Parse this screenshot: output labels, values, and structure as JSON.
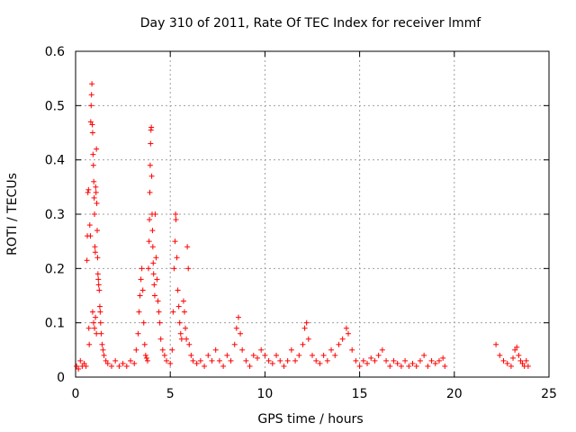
{
  "chart_data": {
    "type": "scatter",
    "title": "Day 310 of 2011, Rate Of TEC Index for receiver lmmf",
    "xlabel": "GPS time / hours",
    "ylabel": "ROTI / TECUs",
    "xlim": [
      0,
      25
    ],
    "ylim": [
      0,
      0.6
    ],
    "xticks": [
      "0",
      "5",
      "10",
      "15",
      "20",
      "25"
    ],
    "yticks": [
      "0",
      "0.1",
      "0.2",
      "0.3",
      "0.4",
      "0.5",
      "0.6"
    ],
    "grid": true,
    "marker": "plus",
    "color": "#ff0000",
    "series": [
      {
        "values": [
          [
            0.05,
            0.02
          ],
          [
            0.15,
            0.015
          ],
          [
            0.25,
            0.03
          ],
          [
            0.35,
            0.02
          ],
          [
            0.45,
            0.025
          ],
          [
            0.55,
            0.02
          ],
          [
            0.6,
            0.215
          ],
          [
            0.62,
            0.26
          ],
          [
            0.65,
            0.34
          ],
          [
            0.68,
            0.345
          ],
          [
            0.7,
            0.09
          ],
          [
            0.72,
            0.06
          ],
          [
            0.75,
            0.28
          ],
          [
            0.78,
            0.26
          ],
          [
            0.8,
            0.47
          ],
          [
            0.82,
            0.5
          ],
          [
            0.84,
            0.52
          ],
          [
            0.86,
            0.54
          ],
          [
            0.88,
            0.465
          ],
          [
            0.9,
            0.45
          ],
          [
            0.92,
            0.41
          ],
          [
            0.94,
            0.39
          ],
          [
            0.96,
            0.36
          ],
          [
            0.98,
            0.33
          ],
          [
            1.0,
            0.3
          ],
          [
            1.02,
            0.24
          ],
          [
            1.04,
            0.23
          ],
          [
            1.06,
            0.35
          ],
          [
            1.08,
            0.34
          ],
          [
            1.1,
            0.42
          ],
          [
            1.12,
            0.32
          ],
          [
            1.14,
            0.27
          ],
          [
            1.16,
            0.22
          ],
          [
            1.18,
            0.19
          ],
          [
            1.2,
            0.18
          ],
          [
            1.22,
            0.17
          ],
          [
            1.25,
            0.16
          ],
          [
            1.28,
            0.13
          ],
          [
            1.3,
            0.12
          ],
          [
            1.32,
            0.1
          ],
          [
            1.35,
            0.08
          ],
          [
            1.4,
            0.06
          ],
          [
            1.45,
            0.05
          ],
          [
            1.5,
            0.04
          ],
          [
            1.6,
            0.03
          ],
          [
            0.9,
            0.12
          ],
          [
            0.95,
            0.1
          ],
          [
            1.0,
            0.09
          ],
          [
            1.05,
            0.11
          ],
          [
            1.1,
            0.08
          ],
          [
            1.7,
            0.025
          ],
          [
            1.9,
            0.02
          ],
          [
            2.1,
            0.03
          ],
          [
            2.3,
            0.02
          ],
          [
            2.5,
            0.025
          ],
          [
            2.7,
            0.02
          ],
          [
            2.9,
            0.03
          ],
          [
            3.1,
            0.025
          ],
          [
            3.2,
            0.05
          ],
          [
            3.3,
            0.08
          ],
          [
            3.35,
            0.12
          ],
          [
            3.4,
            0.15
          ],
          [
            3.45,
            0.18
          ],
          [
            3.5,
            0.2
          ],
          [
            3.55,
            0.16
          ],
          [
            3.6,
            0.1
          ],
          [
            3.65,
            0.06
          ],
          [
            3.7,
            0.04
          ],
          [
            3.75,
            0.035
          ],
          [
            3.8,
            0.03
          ],
          [
            3.85,
            0.2
          ],
          [
            3.88,
            0.25
          ],
          [
            3.9,
            0.29
          ],
          [
            3.92,
            0.34
          ],
          [
            3.94,
            0.39
          ],
          [
            3.96,
            0.43
          ],
          [
            3.98,
            0.455
          ],
          [
            4.0,
            0.46
          ],
          [
            4.02,
            0.37
          ],
          [
            4.04,
            0.3
          ],
          [
            4.06,
            0.27
          ],
          [
            4.08,
            0.24
          ],
          [
            4.1,
            0.21
          ],
          [
            4.12,
            0.19
          ],
          [
            4.15,
            0.17
          ],
          [
            4.18,
            0.15
          ],
          [
            4.2,
            0.3
          ],
          [
            4.25,
            0.22
          ],
          [
            4.3,
            0.18
          ],
          [
            4.35,
            0.14
          ],
          [
            4.4,
            0.12
          ],
          [
            4.45,
            0.1
          ],
          [
            4.5,
            0.07
          ],
          [
            4.6,
            0.05
          ],
          [
            4.7,
            0.04
          ],
          [
            4.8,
            0.03
          ],
          [
            5.0,
            0.025
          ],
          [
            5.1,
            0.05
          ],
          [
            5.15,
            0.12
          ],
          [
            5.2,
            0.2
          ],
          [
            5.25,
            0.25
          ],
          [
            5.28,
            0.3
          ],
          [
            5.3,
            0.29
          ],
          [
            5.35,
            0.22
          ],
          [
            5.4,
            0.16
          ],
          [
            5.45,
            0.13
          ],
          [
            5.5,
            0.1
          ],
          [
            5.55,
            0.08
          ],
          [
            5.6,
            0.07
          ],
          [
            5.7,
            0.14
          ],
          [
            5.75,
            0.12
          ],
          [
            5.8,
            0.09
          ],
          [
            5.85,
            0.07
          ],
          [
            5.9,
            0.24
          ],
          [
            5.95,
            0.2
          ],
          [
            6.0,
            0.06
          ],
          [
            6.1,
            0.04
          ],
          [
            6.2,
            0.03
          ],
          [
            6.4,
            0.025
          ],
          [
            6.6,
            0.03
          ],
          [
            6.8,
            0.02
          ],
          [
            7.0,
            0.04
          ],
          [
            7.2,
            0.03
          ],
          [
            7.4,
            0.05
          ],
          [
            7.6,
            0.03
          ],
          [
            7.8,
            0.02
          ],
          [
            8.0,
            0.04
          ],
          [
            8.2,
            0.03
          ],
          [
            8.4,
            0.06
          ],
          [
            8.5,
            0.09
          ],
          [
            8.6,
            0.11
          ],
          [
            8.7,
            0.08
          ],
          [
            8.8,
            0.05
          ],
          [
            9.0,
            0.03
          ],
          [
            9.2,
            0.02
          ],
          [
            9.4,
            0.04
          ],
          [
            9.6,
            0.035
          ],
          [
            9.8,
            0.05
          ],
          [
            10.0,
            0.04
          ],
          [
            10.2,
            0.03
          ],
          [
            10.4,
            0.025
          ],
          [
            10.6,
            0.04
          ],
          [
            10.8,
            0.03
          ],
          [
            11.0,
            0.02
          ],
          [
            11.2,
            0.03
          ],
          [
            11.4,
            0.05
          ],
          [
            11.6,
            0.03
          ],
          [
            11.8,
            0.04
          ],
          [
            12.0,
            0.06
          ],
          [
            12.1,
            0.09
          ],
          [
            12.2,
            0.1
          ],
          [
            12.3,
            0.07
          ],
          [
            12.5,
            0.04
          ],
          [
            12.7,
            0.03
          ],
          [
            12.9,
            0.025
          ],
          [
            13.1,
            0.04
          ],
          [
            13.3,
            0.03
          ],
          [
            13.5,
            0.05
          ],
          [
            13.7,
            0.04
          ],
          [
            13.9,
            0.06
          ],
          [
            14.1,
            0.07
          ],
          [
            14.3,
            0.09
          ],
          [
            14.4,
            0.08
          ],
          [
            14.6,
            0.05
          ],
          [
            14.8,
            0.03
          ],
          [
            15.0,
            0.02
          ],
          [
            15.2,
            0.03
          ],
          [
            15.4,
            0.025
          ],
          [
            15.6,
            0.035
          ],
          [
            15.8,
            0.03
          ],
          [
            16.0,
            0.04
          ],
          [
            16.2,
            0.05
          ],
          [
            16.4,
            0.03
          ],
          [
            16.6,
            0.02
          ],
          [
            16.8,
            0.03
          ],
          [
            17.0,
            0.025
          ],
          [
            17.2,
            0.02
          ],
          [
            17.4,
            0.03
          ],
          [
            17.6,
            0.02
          ],
          [
            17.8,
            0.025
          ],
          [
            18.0,
            0.02
          ],
          [
            18.2,
            0.03
          ],
          [
            18.4,
            0.04
          ],
          [
            18.6,
            0.02
          ],
          [
            18.8,
            0.03
          ],
          [
            19.0,
            0.025
          ],
          [
            19.2,
            0.03
          ],
          [
            19.4,
            0.035
          ],
          [
            19.5,
            0.02
          ],
          [
            22.2,
            0.06
          ],
          [
            22.4,
            0.04
          ],
          [
            22.6,
            0.03
          ],
          [
            22.8,
            0.025
          ],
          [
            23.0,
            0.02
          ],
          [
            23.1,
            0.035
          ],
          [
            23.2,
            0.05
          ],
          [
            23.3,
            0.055
          ],
          [
            23.4,
            0.04
          ],
          [
            23.5,
            0.03
          ],
          [
            23.6,
            0.025
          ],
          [
            23.7,
            0.02
          ],
          [
            23.8,
            0.03
          ],
          [
            23.9,
            0.02
          ]
        ]
      }
    ]
  }
}
